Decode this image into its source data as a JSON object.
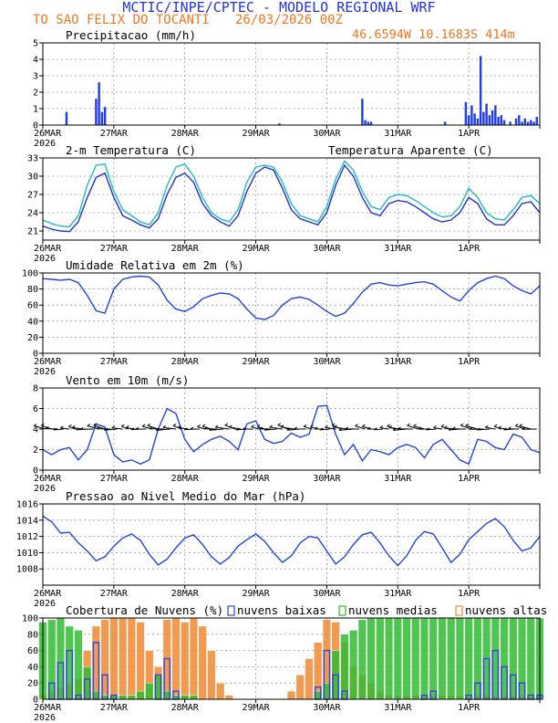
{
  "header": {
    "line1": "MCTIC/INPE/CPTEC - MODELO REGIONAL WRF",
    "station": "TO SAO FELIX DO TOCANTI",
    "run": "26/03/2026 00Z",
    "coords": "46.6594W 10.1683S 414m",
    "colors": {
      "line1": "#2233dd",
      "line2": "#ee7722"
    }
  },
  "x_axis": {
    "labels": [
      "26MAR",
      "27MAR",
      "28MAR",
      "29MAR",
      "30MAR",
      "31MAR",
      "1APR"
    ],
    "year": "2026",
    "hours_total": 168
  },
  "chart_data": [
    {
      "id": "precip",
      "type": "bar",
      "title": "Precipitacao (mm/h)",
      "ylim": [
        0,
        5
      ],
      "yticks": [
        0,
        1,
        2,
        3,
        4,
        5
      ],
      "x_hours": [
        8,
        18,
        19,
        20,
        21,
        80,
        108,
        109,
        110,
        111,
        136,
        143,
        144,
        145,
        146,
        147,
        148,
        149,
        150,
        151,
        152,
        153,
        154,
        155,
        156,
        158,
        160,
        161,
        162,
        163,
        164,
        165,
        166,
        167
      ],
      "values": [
        0.8,
        1.6,
        2.6,
        0.8,
        1.1,
        0.1,
        1.6,
        0.3,
        0.2,
        0.2,
        0.2,
        1.4,
        0.6,
        1.2,
        0.7,
        0.4,
        4.2,
        0.8,
        1.3,
        0.6,
        0.9,
        1.2,
        0.5,
        0.6,
        0.3,
        0.2,
        0.4,
        0.6,
        0.2,
        0.4,
        0.2,
        0.3,
        0.2,
        0.5
      ],
      "color": "#1f3de8"
    },
    {
      "id": "temp",
      "type": "line",
      "title": "2-m Temperatura (C)",
      "title2": "Temperatura Aparente (C)",
      "ylim": [
        19.5,
        33
      ],
      "yticks": [
        21,
        24,
        27,
        30,
        33
      ],
      "x": [
        0,
        3,
        6,
        9,
        12,
        15,
        18,
        21,
        24,
        27,
        30,
        33,
        36,
        39,
        42,
        45,
        48,
        51,
        54,
        57,
        60,
        63,
        66,
        69,
        72,
        75,
        78,
        81,
        84,
        87,
        90,
        93,
        96,
        99,
        102,
        105,
        108,
        111,
        114,
        117,
        120,
        123,
        126,
        129,
        132,
        135,
        138,
        141,
        144,
        147,
        150,
        153,
        156,
        159,
        162,
        165,
        168
      ],
      "series": [
        {
          "name": "2-m Temperatura",
          "color": "#2233cc",
          "values": [
            21.8,
            21.3,
            21.0,
            20.9,
            22.5,
            26.5,
            29.8,
            30.5,
            26.5,
            23.5,
            22.8,
            22.0,
            21.5,
            23.0,
            27.0,
            29.8,
            30.5,
            29.0,
            25.5,
            23.5,
            22.5,
            21.8,
            23.5,
            27.5,
            30.5,
            31.5,
            31.0,
            28.0,
            24.5,
            23.0,
            22.5,
            22.0,
            24.0,
            28.5,
            31.8,
            30.0,
            26.5,
            24.0,
            23.5,
            25.5,
            26.0,
            25.8,
            25.0,
            24.0,
            23.0,
            22.5,
            22.8,
            24.0,
            26.5,
            25.5,
            23.0,
            22.0,
            22.0,
            23.5,
            25.5,
            25.8,
            24.0
          ]
        },
        {
          "name": "Temperatura Aparente",
          "color": "#22bbbb",
          "values": [
            22.8,
            22.2,
            21.8,
            21.7,
            23.5,
            28.5,
            31.8,
            32.0,
            27.5,
            24.5,
            23.5,
            22.5,
            22.0,
            24.0,
            28.5,
            31.5,
            32.0,
            30.0,
            26.5,
            24.0,
            23.0,
            22.5,
            24.5,
            29.0,
            31.5,
            31.8,
            31.5,
            29.0,
            25.5,
            23.5,
            23.0,
            22.5,
            25.0,
            29.5,
            32.5,
            31.0,
            27.5,
            25.0,
            24.5,
            26.5,
            27.0,
            26.8,
            26.0,
            25.0,
            24.0,
            23.3,
            23.5,
            25.0,
            28.0,
            26.5,
            24.0,
            23.0,
            22.8,
            24.5,
            26.5,
            26.8,
            25.5
          ]
        }
      ]
    },
    {
      "id": "rh",
      "type": "line",
      "title": "Umidade Relativa em 2m (%)",
      "ylim": [
        0,
        100
      ],
      "yticks": [
        0,
        20,
        40,
        60,
        80,
        100
      ],
      "x": [
        0,
        3,
        6,
        9,
        12,
        15,
        18,
        21,
        24,
        27,
        30,
        33,
        36,
        39,
        42,
        45,
        48,
        51,
        54,
        57,
        60,
        63,
        66,
        69,
        72,
        75,
        78,
        81,
        84,
        87,
        90,
        93,
        96,
        99,
        102,
        105,
        108,
        111,
        114,
        117,
        120,
        123,
        126,
        129,
        132,
        135,
        138,
        141,
        144,
        147,
        150,
        153,
        156,
        159,
        162,
        165,
        168
      ],
      "series": [
        {
          "name": "Umidade Relativa",
          "color": "#2244dd",
          "values": [
            93,
            92,
            91,
            92,
            88,
            72,
            53,
            50,
            80,
            92,
            95,
            96,
            95,
            85,
            66,
            55,
            52,
            58,
            68,
            72,
            75,
            74,
            68,
            55,
            44,
            42,
            47,
            60,
            68,
            70,
            67,
            60,
            52,
            46,
            50,
            62,
            76,
            86,
            88,
            85,
            84,
            86,
            88,
            89,
            86,
            78,
            70,
            65,
            78,
            88,
            93,
            96,
            93,
            84,
            78,
            74,
            84
          ]
        }
      ]
    },
    {
      "id": "wind",
      "type": "line",
      "title": "Vento em 10m (m/s)",
      "ylim": [
        0,
        8
      ],
      "yticks": [
        0,
        2,
        4,
        6,
        8
      ],
      "barb_level": 4,
      "x": [
        0,
        3,
        6,
        9,
        12,
        15,
        18,
        21,
        24,
        27,
        30,
        33,
        36,
        39,
        42,
        45,
        48,
        51,
        54,
        57,
        60,
        63,
        66,
        69,
        72,
        75,
        78,
        81,
        84,
        87,
        90,
        93,
        96,
        99,
        102,
        105,
        108,
        111,
        114,
        117,
        120,
        123,
        126,
        129,
        132,
        135,
        138,
        141,
        144,
        147,
        150,
        153,
        156,
        159,
        162,
        165,
        168
      ],
      "series": [
        {
          "name": "Vento",
          "color": "#2244dd",
          "values": [
            2.0,
            1.5,
            2.0,
            2.2,
            1.0,
            2.0,
            4.5,
            4.2,
            1.5,
            0.8,
            1.0,
            0.6,
            1.0,
            4.0,
            6.0,
            5.5,
            3.0,
            1.8,
            2.5,
            3.0,
            3.3,
            2.8,
            2.0,
            4.5,
            4.8,
            3.0,
            2.6,
            2.8,
            3.6,
            3.2,
            3.5,
            6.2,
            6.3,
            3.5,
            1.5,
            2.5,
            0.9,
            2.0,
            1.8,
            1.5,
            2.2,
            2.5,
            2.2,
            1.2,
            2.5,
            3.0,
            2.0,
            1.0,
            0.6,
            3.0,
            2.8,
            2.2,
            2.0,
            3.5,
            3.2,
            2.0,
            1.7
          ]
        }
      ]
    },
    {
      "id": "pressure",
      "type": "line",
      "title": "Pressao ao Nivel Medio do Mar (hPa)",
      "ylim": [
        1006,
        1016
      ],
      "yticks": [
        1008,
        1010,
        1012,
        1014,
        1016
      ],
      "x": [
        0,
        3,
        6,
        9,
        12,
        15,
        18,
        21,
        24,
        27,
        30,
        33,
        36,
        39,
        42,
        45,
        48,
        51,
        54,
        57,
        60,
        63,
        66,
        69,
        72,
        75,
        78,
        81,
        84,
        87,
        90,
        93,
        96,
        99,
        102,
        105,
        108,
        111,
        114,
        117,
        120,
        123,
        126,
        129,
        132,
        135,
        138,
        141,
        144,
        147,
        150,
        153,
        156,
        159,
        162,
        165,
        168
      ],
      "series": [
        {
          "name": "Pressao",
          "color": "#2244dd",
          "values": [
            1014.5,
            1013.8,
            1012.4,
            1012.5,
            1011.2,
            1010.2,
            1009.0,
            1009.5,
            1010.8,
            1011.8,
            1012.3,
            1011.5,
            1009.8,
            1008.5,
            1009.2,
            1010.6,
            1011.8,
            1012.2,
            1011.0,
            1009.5,
            1008.6,
            1009.4,
            1010.8,
            1011.6,
            1012.3,
            1011.4,
            1010.0,
            1008.8,
            1009.6,
            1011.2,
            1012.0,
            1011.8,
            1010.2,
            1008.6,
            1009.5,
            1011.0,
            1012.2,
            1012.5,
            1011.2,
            1009.6,
            1008.4,
            1009.6,
            1011.5,
            1012.6,
            1012.3,
            1010.6,
            1008.8,
            1009.8,
            1011.6,
            1012.6,
            1013.6,
            1014.2,
            1013.2,
            1011.5,
            1010.2,
            1010.6,
            1012.0
          ]
        }
      ]
    },
    {
      "id": "clouds",
      "type": "bar",
      "title": "Cobertura de Nuvens (%)",
      "legend": [
        "nuvens baixas",
        "nuvens medias",
        "nuvens altas"
      ],
      "ylim": [
        0,
        100
      ],
      "yticks": [
        0,
        20,
        40,
        60,
        80,
        100
      ],
      "x_hours": [
        0,
        3,
        6,
        9,
        12,
        15,
        18,
        21,
        24,
        27,
        30,
        33,
        36,
        39,
        42,
        45,
        48,
        51,
        54,
        57,
        60,
        63,
        66,
        69,
        72,
        75,
        78,
        81,
        84,
        87,
        90,
        93,
        96,
        99,
        102,
        105,
        108,
        111,
        114,
        117,
        120,
        123,
        126,
        129,
        132,
        135,
        138,
        141,
        144,
        147,
        150,
        153,
        156,
        159,
        162,
        165,
        168
      ],
      "series": [
        {
          "name": "nuvens altas",
          "color": "#ee8833",
          "values": [
            5,
            10,
            15,
            20,
            25,
            60,
            90,
            98,
            100,
            100,
            100,
            95,
            60,
            40,
            98,
            100,
            95,
            100,
            90,
            60,
            20,
            5,
            0,
            0,
            0,
            0,
            0,
            0,
            10,
            30,
            50,
            70,
            98,
            95,
            70,
            40,
            30,
            20,
            10,
            5,
            5,
            5,
            5,
            5,
            5,
            5,
            5,
            5,
            5,
            5,
            5,
            5,
            5,
            5,
            5,
            5,
            5
          ]
        },
        {
          "name": "nuvens medias",
          "color": "#33bb33",
          "values": [
            95,
            98,
            100,
            90,
            85,
            40,
            10,
            5,
            5,
            5,
            5,
            10,
            20,
            30,
            10,
            5,
            5,
            5,
            0,
            0,
            0,
            0,
            0,
            0,
            0,
            0,
            0,
            0,
            0,
            0,
            0,
            10,
            20,
            60,
            80,
            85,
            98,
            100,
            100,
            100,
            100,
            100,
            100,
            100,
            100,
            100,
            100,
            100,
            100,
            100,
            100,
            100,
            100,
            100,
            100,
            100,
            100
          ]
        },
        {
          "name": "nuvens baixas",
          "color": "#3344dd",
          "values": [
            0,
            20,
            45,
            60,
            5,
            25,
            70,
            30,
            5,
            0,
            0,
            0,
            0,
            30,
            50,
            10,
            0,
            0,
            0,
            0,
            0,
            0,
            0,
            0,
            0,
            0,
            0,
            0,
            0,
            0,
            0,
            15,
            60,
            30,
            10,
            0,
            0,
            0,
            0,
            0,
            0,
            0,
            0,
            5,
            10,
            0,
            0,
            0,
            5,
            20,
            50,
            60,
            40,
            30,
            20,
            5,
            5
          ]
        }
      ]
    }
  ]
}
